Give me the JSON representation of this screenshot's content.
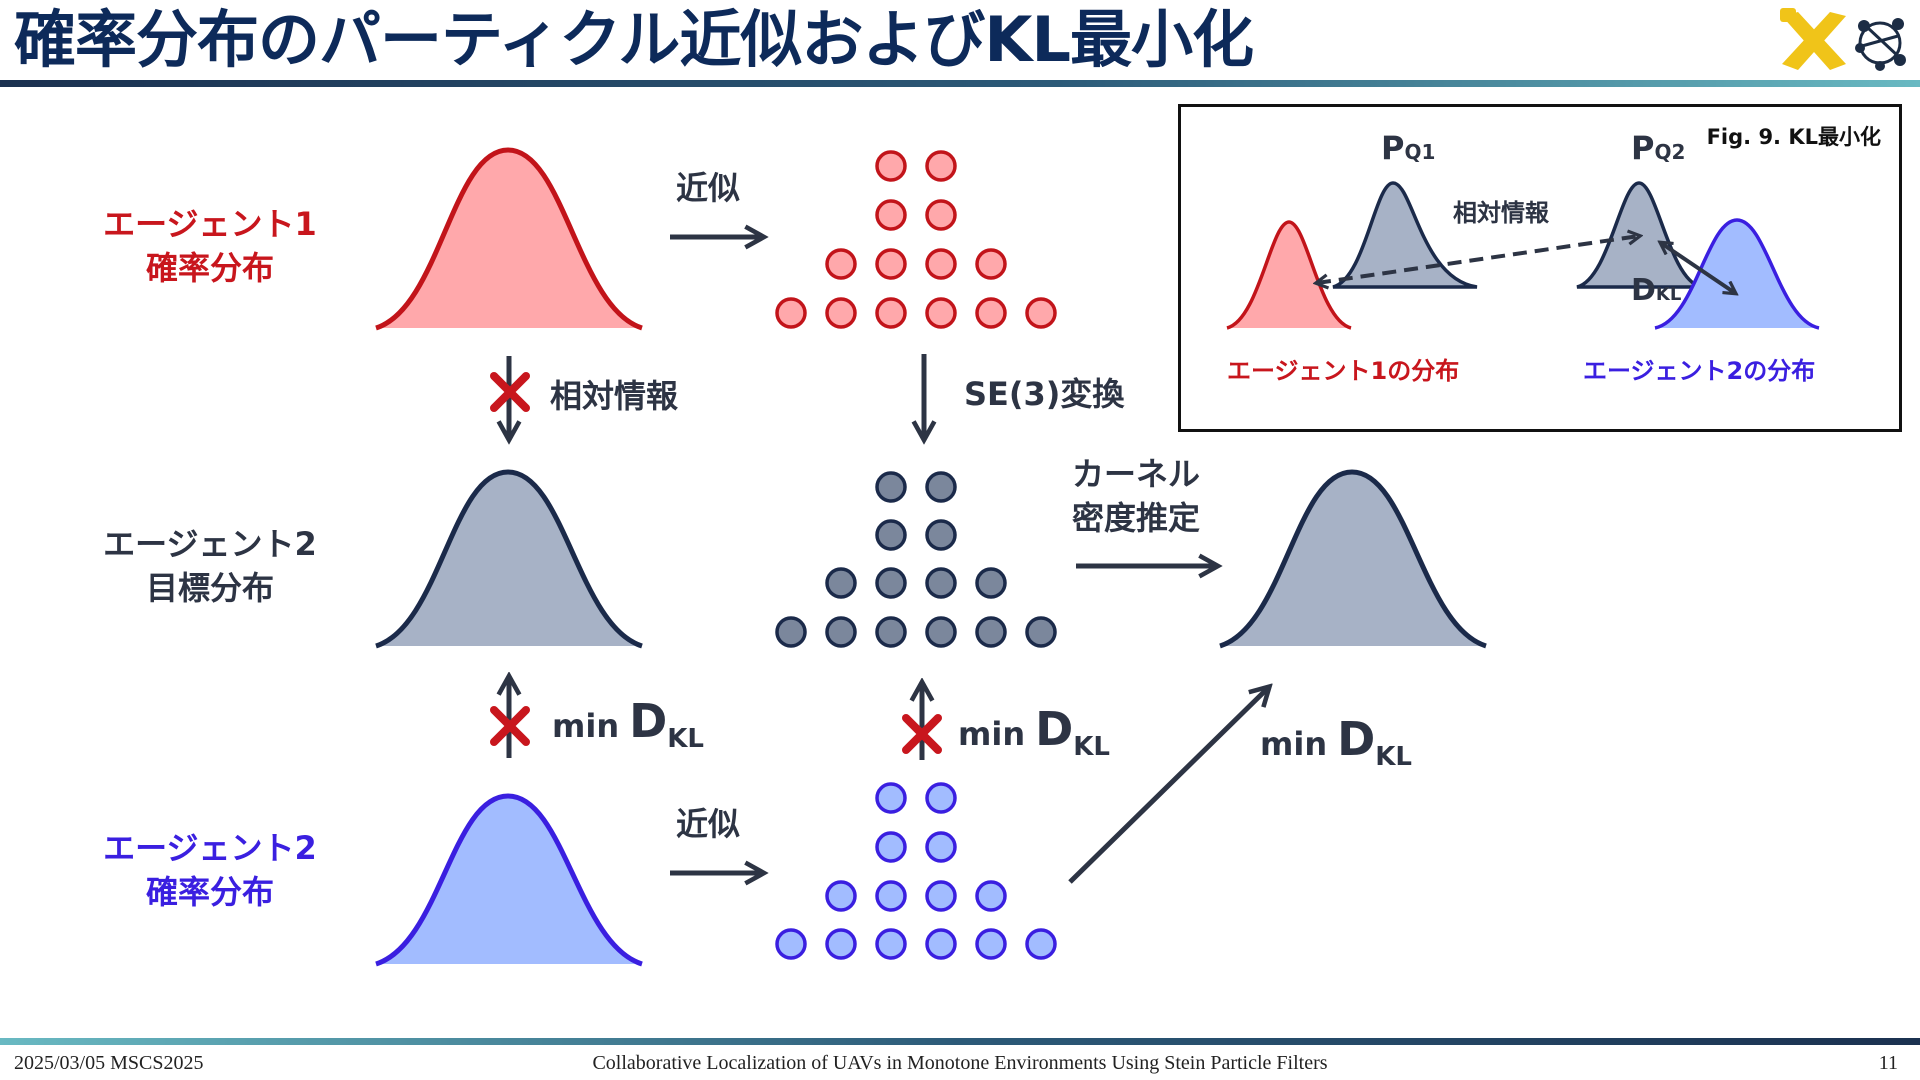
{
  "title": "確率分布のパーティクル近似およびKL最小化",
  "colors": {
    "red_fill": "#ffa8ab",
    "red_stroke": "#c2141a",
    "gray_fill": "#a7b2c6",
    "gray_stroke": "#1b2a4a",
    "blue_fill": "#a2bcff",
    "blue_stroke": "#3a1fe0",
    "arrow": "#2d3444",
    "cross": "#c8161d"
  },
  "rows": {
    "agent1": {
      "line1": "エージェント1",
      "line2": "確率分布"
    },
    "agent2_target": {
      "line1": "エージェント2",
      "line2": "目標分布"
    },
    "agent2": {
      "line1": "エージェント2",
      "line2": "確率分布"
    }
  },
  "labels": {
    "approx_top": "近似",
    "approx_bottom": "近似",
    "relative_info": "相対情報",
    "se3": "SE(3)変換",
    "kde_line1": "カーネル",
    "kde_line2": "密度推定",
    "min": "min",
    "d": "D",
    "kl": "KL"
  },
  "inset": {
    "caption": "Fig. 9. KL最小化",
    "pq1": "P",
    "pq1_sub": "Q1",
    "pq2": "P",
    "pq2_sub": "Q2",
    "relative_info": "相対情報",
    "dkl": "D",
    "dkl_sub": "KL",
    "dist1": "エージェント1の分布",
    "dist2": "エージェント2の分布"
  },
  "footer": {
    "left": "2025/03/05 MSCS2025",
    "center": "Collaborative Localization of UAVs in Monotone Environments Using Stein Particle Filters",
    "page": "11"
  }
}
